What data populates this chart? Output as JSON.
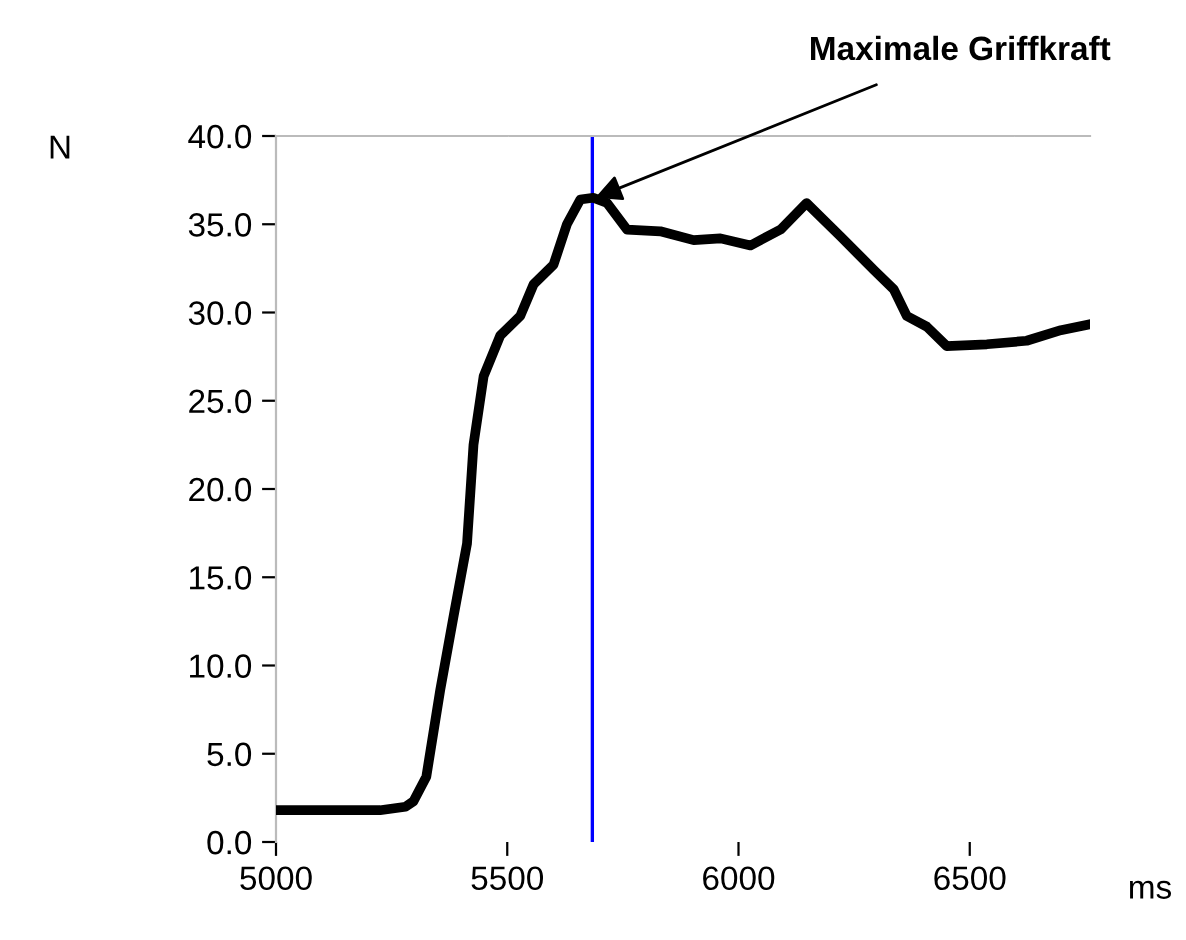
{
  "chart_data": {
    "type": "line",
    "ylabel": "N",
    "xlabel": "ms",
    "x": [
      5000,
      5225,
      5280,
      5297,
      5325,
      5355,
      5384,
      5413,
      5427,
      5449,
      5485,
      5528,
      5557,
      5600,
      5629,
      5658,
      5686,
      5716,
      5759,
      5831,
      5903,
      5961,
      6026,
      6091,
      6147,
      6221,
      6293,
      6336,
      6364,
      6407,
      6450,
      6537,
      6623,
      6697,
      6753
    ],
    "series": [
      {
        "color": "#000000",
        "values": [
          1.8,
          1.8,
          2.0,
          2.3,
          3.7,
          8.6,
          12.8,
          16.9,
          22.5,
          26.4,
          28.7,
          29.8,
          31.6,
          32.7,
          35.0,
          36.4,
          36.5,
          36.2,
          34.7,
          34.6,
          34.1,
          34.2,
          33.8,
          34.7,
          36.2,
          34.3,
          32.4,
          31.3,
          29.8,
          29.2,
          28.1,
          28.2,
          28.4,
          29.0,
          29.3
        ]
      }
    ],
    "xlim": [
      5000,
      6760
    ],
    "ylim": [
      0,
      40
    ],
    "xticks": [
      5000,
      5500,
      6000,
      6500
    ],
    "yticks": [
      {
        "value": 0,
        "label": "0.0"
      },
      {
        "value": 5,
        "label": "5.0"
      },
      {
        "value": 10,
        "label": "10.0"
      },
      {
        "value": 15,
        "label": "15.0"
      },
      {
        "value": 20,
        "label": "20.0"
      },
      {
        "value": 25,
        "label": "25.0"
      },
      {
        "value": 30,
        "label": "30.0"
      },
      {
        "value": 35,
        "label": "35.0"
      },
      {
        "value": 40,
        "label": "40.0"
      }
    ],
    "ref_lines": [
      {
        "axis": "x",
        "value": 5684,
        "color": "#0000ff"
      }
    ],
    "annotations": [
      {
        "text": "Maximale Griffkraft",
        "x": 5690,
        "y": 36.5
      }
    ],
    "grid": false,
    "legend": false,
    "marker": "none",
    "line_style": "solid"
  }
}
